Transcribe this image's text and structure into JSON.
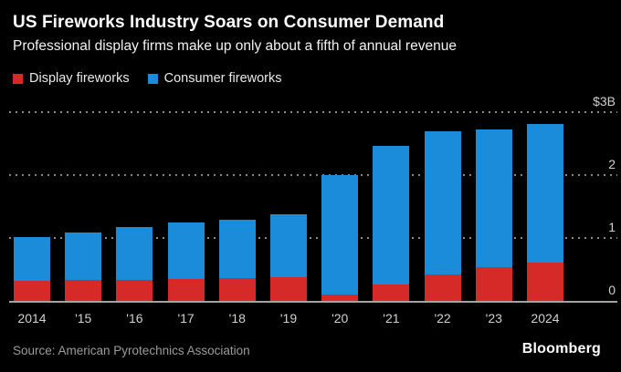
{
  "header": {
    "title": "US Fireworks Industry Soars on Consumer Demand",
    "subtitle": "Professional display firms make up only about a fifth of annual revenue"
  },
  "legend": [
    {
      "label": "Display fireworks",
      "color": "#d62a28"
    },
    {
      "label": "Consumer fireworks",
      "color": "#1a8cd9"
    }
  ],
  "chart_data": {
    "type": "bar",
    "stacked": true,
    "title": "US Fireworks Industry Soars on Consumer Demand",
    "subtitle": "Professional display firms make up only about a fifth of annual revenue",
    "unit": "billions of US dollars",
    "categories": [
      "2014",
      "'15",
      "'16",
      "'17",
      "'18",
      "'19",
      "'20",
      "'21",
      "'22",
      "'23",
      "2024"
    ],
    "series": [
      {
        "name": "Display fireworks",
        "color": "#d62a28",
        "values": [
          0.32,
          0.33,
          0.34,
          0.35,
          0.36,
          0.38,
          0.1,
          0.26,
          0.42,
          0.53,
          0.61
        ]
      },
      {
        "name": "Consumer fireworks",
        "color": "#1a8cd9",
        "values": [
          0.7,
          0.76,
          0.83,
          0.9,
          0.93,
          1.0,
          1.9,
          2.2,
          2.28,
          2.19,
          2.2
        ]
      }
    ],
    "ylim": [
      0,
      3
    ],
    "yticks": [
      {
        "value": 3,
        "label": "$3B"
      },
      {
        "value": 2,
        "label": "2"
      },
      {
        "value": 1,
        "label": "1"
      },
      {
        "value": 0,
        "label": "0"
      }
    ],
    "grid": "horizontal-dotted",
    "legend_position": "top-left",
    "background": "#000000"
  },
  "footer": {
    "source": "Source: American Pyrotechnics Association",
    "brand": "Bloomberg"
  }
}
